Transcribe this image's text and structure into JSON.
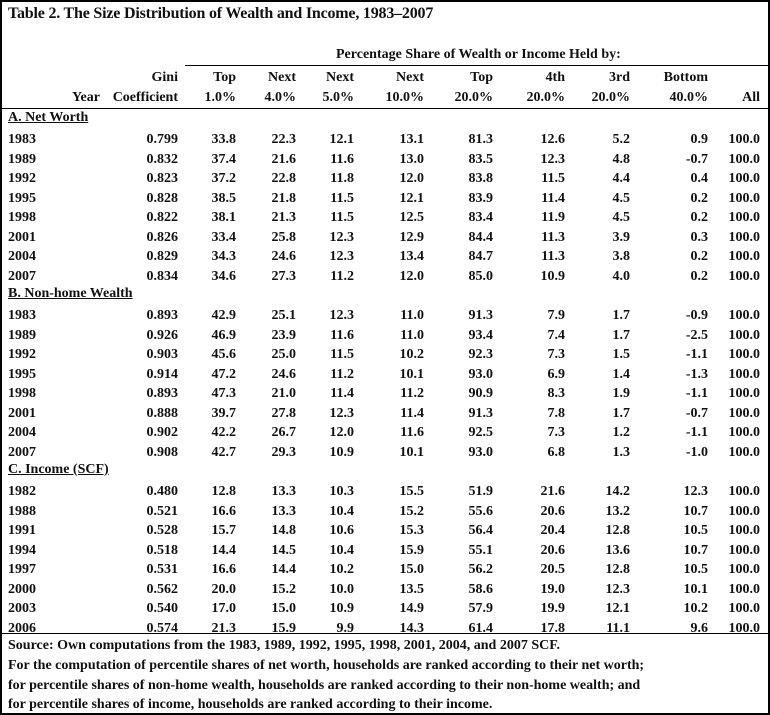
{
  "title": "Table 2. The Size Distribution of Wealth and Income, 1983–2007",
  "super_header": "Percentage Share of Wealth or Income Held by:",
  "columns": [
    {
      "top": "",
      "bottom": "Year"
    },
    {
      "top": "Gini",
      "bottom": "Coefficient"
    },
    {
      "top": "Top",
      "bottom": "1.0%"
    },
    {
      "top": "Next",
      "bottom": "4.0%"
    },
    {
      "top": "Next",
      "bottom": "5.0%"
    },
    {
      "top": "Next",
      "bottom": "10.0%"
    },
    {
      "top": "Top",
      "bottom": "20.0%"
    },
    {
      "top": "4th",
      "bottom": "20.0%"
    },
    {
      "top": "3rd",
      "bottom": "20.0%"
    },
    {
      "top": "Bottom",
      "bottom": "40.0%"
    },
    {
      "top": "",
      "bottom": "All"
    }
  ],
  "sections": [
    {
      "label": "A. Net Worth",
      "rows": [
        [
          "1983",
          "0.799",
          "33.8",
          "22.3",
          "12.1",
          "13.1",
          "81.3",
          "12.6",
          "5.2",
          "0.9",
          "100.0"
        ],
        [
          "1989",
          "0.832",
          "37.4",
          "21.6",
          "11.6",
          "13.0",
          "83.5",
          "12.3",
          "4.8",
          "-0.7",
          "100.0"
        ],
        [
          "1992",
          "0.823",
          "37.2",
          "22.8",
          "11.8",
          "12.0",
          "83.8",
          "11.5",
          "4.4",
          "0.4",
          "100.0"
        ],
        [
          "1995",
          "0.828",
          "38.5",
          "21.8",
          "11.5",
          "12.1",
          "83.9",
          "11.4",
          "4.5",
          "0.2",
          "100.0"
        ],
        [
          "1998",
          "0.822",
          "38.1",
          "21.3",
          "11.5",
          "12.5",
          "83.4",
          "11.9",
          "4.5",
          "0.2",
          "100.0"
        ],
        [
          "2001",
          "0.826",
          "33.4",
          "25.8",
          "12.3",
          "12.9",
          "84.4",
          "11.3",
          "3.9",
          "0.3",
          "100.0"
        ],
        [
          "2004",
          "0.829",
          "34.3",
          "24.6",
          "12.3",
          "13.4",
          "84.7",
          "11.3",
          "3.8",
          "0.2",
          "100.0"
        ],
        [
          "2007",
          "0.834",
          "34.6",
          "27.3",
          "11.2",
          "12.0",
          "85.0",
          "10.9",
          "4.0",
          "0.2",
          "100.0"
        ]
      ]
    },
    {
      "label": "B. Non-home Wealth",
      "rows": [
        [
          "1983",
          "0.893",
          "42.9",
          "25.1",
          "12.3",
          "11.0",
          "91.3",
          "7.9",
          "1.7",
          "-0.9",
          "100.0"
        ],
        [
          "1989",
          "0.926",
          "46.9",
          "23.9",
          "11.6",
          "11.0",
          "93.4",
          "7.4",
          "1.7",
          "-2.5",
          "100.0"
        ],
        [
          "1992",
          "0.903",
          "45.6",
          "25.0",
          "11.5",
          "10.2",
          "92.3",
          "7.3",
          "1.5",
          "-1.1",
          "100.0"
        ],
        [
          "1995",
          "0.914",
          "47.2",
          "24.6",
          "11.2",
          "10.1",
          "93.0",
          "6.9",
          "1.4",
          "-1.3",
          "100.0"
        ],
        [
          "1998",
          "0.893",
          "47.3",
          "21.0",
          "11.4",
          "11.2",
          "90.9",
          "8.3",
          "1.9",
          "-1.1",
          "100.0"
        ],
        [
          "2001",
          "0.888",
          "39.7",
          "27.8",
          "12.3",
          "11.4",
          "91.3",
          "7.8",
          "1.7",
          "-0.7",
          "100.0"
        ],
        [
          "2004",
          "0.902",
          "42.2",
          "26.7",
          "12.0",
          "11.6",
          "92.5",
          "7.3",
          "1.2",
          "-1.1",
          "100.0"
        ],
        [
          "2007",
          "0.908",
          "42.7",
          "29.3",
          "10.9",
          "10.1",
          "93.0",
          "6.8",
          "1.3",
          "-1.0",
          "100.0"
        ]
      ]
    },
    {
      "label": "C. Income (SCF)",
      "rows": [
        [
          "1982",
          "0.480",
          "12.8",
          "13.3",
          "10.3",
          "15.5",
          "51.9",
          "21.6",
          "14.2",
          "12.3",
          "100.0"
        ],
        [
          "1988",
          "0.521",
          "16.6",
          "13.3",
          "10.4",
          "15.2",
          "55.6",
          "20.6",
          "13.2",
          "10.7",
          "100.0"
        ],
        [
          "1991",
          "0.528",
          "15.7",
          "14.8",
          "10.6",
          "15.3",
          "56.4",
          "20.4",
          "12.8",
          "10.5",
          "100.0"
        ],
        [
          "1994",
          "0.518",
          "14.4",
          "14.5",
          "10.4",
          "15.9",
          "55.1",
          "20.6",
          "13.6",
          "10.7",
          "100.0"
        ],
        [
          "1997",
          "0.531",
          "16.6",
          "14.4",
          "10.2",
          "15.0",
          "56.2",
          "20.5",
          "12.8",
          "10.5",
          "100.0"
        ],
        [
          "2000",
          "0.562",
          "20.0",
          "15.2",
          "10.0",
          "13.5",
          "58.6",
          "19.0",
          "12.3",
          "10.1",
          "100.0"
        ],
        [
          "2003",
          "0.540",
          "17.0",
          "15.0",
          "10.9",
          "14.9",
          "57.9",
          "19.9",
          "12.1",
          "10.2",
          "100.0"
        ],
        [
          "2006",
          "0.574",
          "21.3",
          "15.9",
          "9.9",
          "14.3",
          "61.4",
          "17.8",
          "11.1",
          "9.6",
          "100.0"
        ]
      ]
    }
  ],
  "notes": [
    "Source: Own computations from the 1983, 1989, 1992, 1995, 1998, 2001, 2004, and 2007 SCF.",
    "For the computation of percentile shares of net worth, households are ranked according to their net worth;",
    "for percentile shares of non-home wealth, households are ranked according to their non-home wealth; and",
    "for percentile shares of income, households are ranked according to their income."
  ]
}
